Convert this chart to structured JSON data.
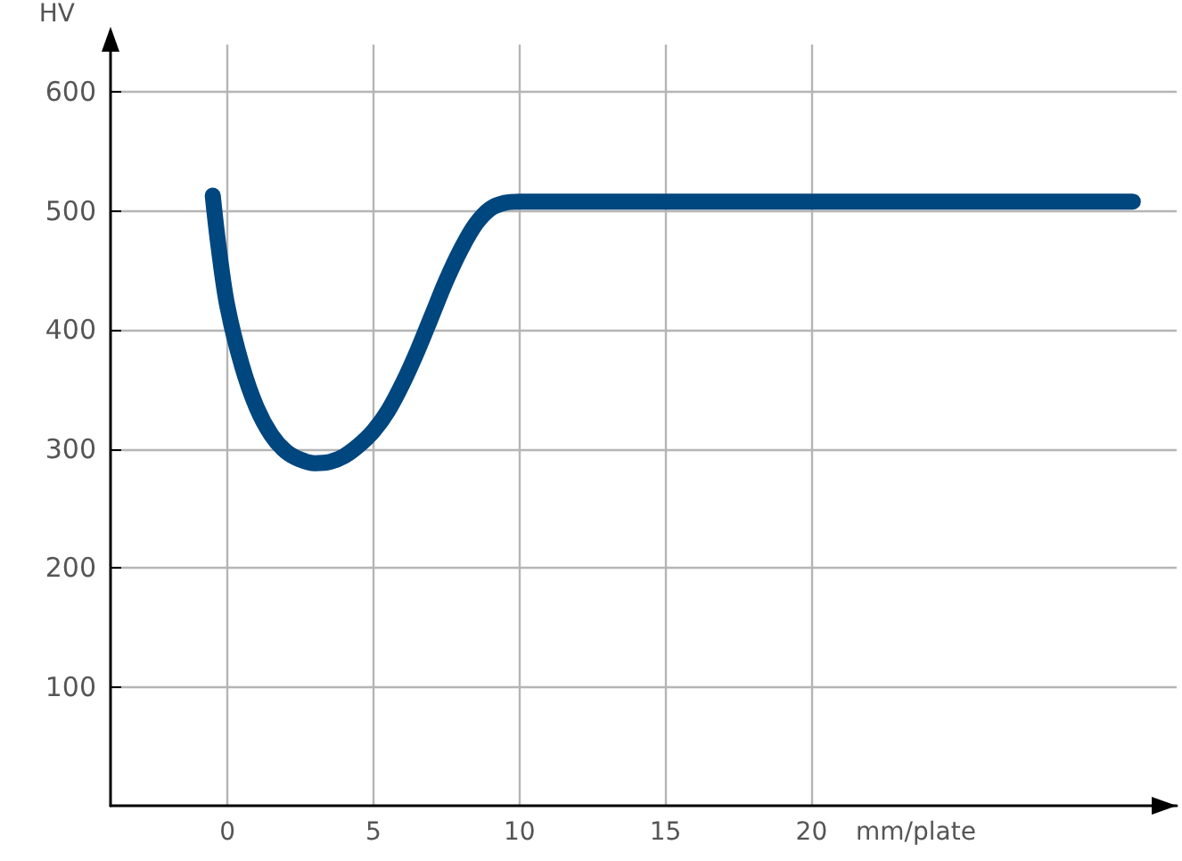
{
  "chart_data": {
    "type": "line",
    "ylabel": "HV",
    "xlabel": "mm/plate",
    "x": [
      -0.5,
      -0.3,
      0,
      0.5,
      1,
      1.5,
      2,
      2.5,
      3,
      3.5,
      4,
      4.5,
      5,
      5.5,
      6,
      6.5,
      7,
      7.5,
      8,
      8.5,
      9,
      9.5,
      10,
      15,
      20,
      25,
      31
    ],
    "series": [
      {
        "color": "#00467f",
        "values": [
          513,
          470,
          420,
          370,
          335,
          312,
          298,
          291,
          288,
          289,
          294,
          303,
          315,
          332,
          355,
          382,
          412,
          442,
          468,
          489,
          502,
          507,
          508,
          508,
          508,
          508,
          508
        ]
      }
    ],
    "xlim": [
      -4,
      32.5
    ],
    "xticks": [
      0,
      5,
      10,
      15,
      20
    ],
    "ylim": [
      0,
      640
    ],
    "yticks": [
      100,
      200,
      300,
      400,
      500,
      600
    ],
    "grid": true,
    "line_style": "solid"
  }
}
